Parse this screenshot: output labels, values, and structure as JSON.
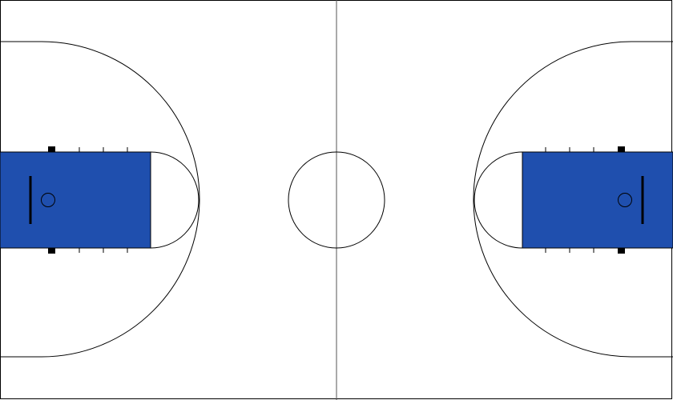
{
  "court": {
    "floor_color": "#ffffff",
    "line_color": "#000000",
    "paint_color": "#1f4fae",
    "center_line_color": "#555555"
  }
}
